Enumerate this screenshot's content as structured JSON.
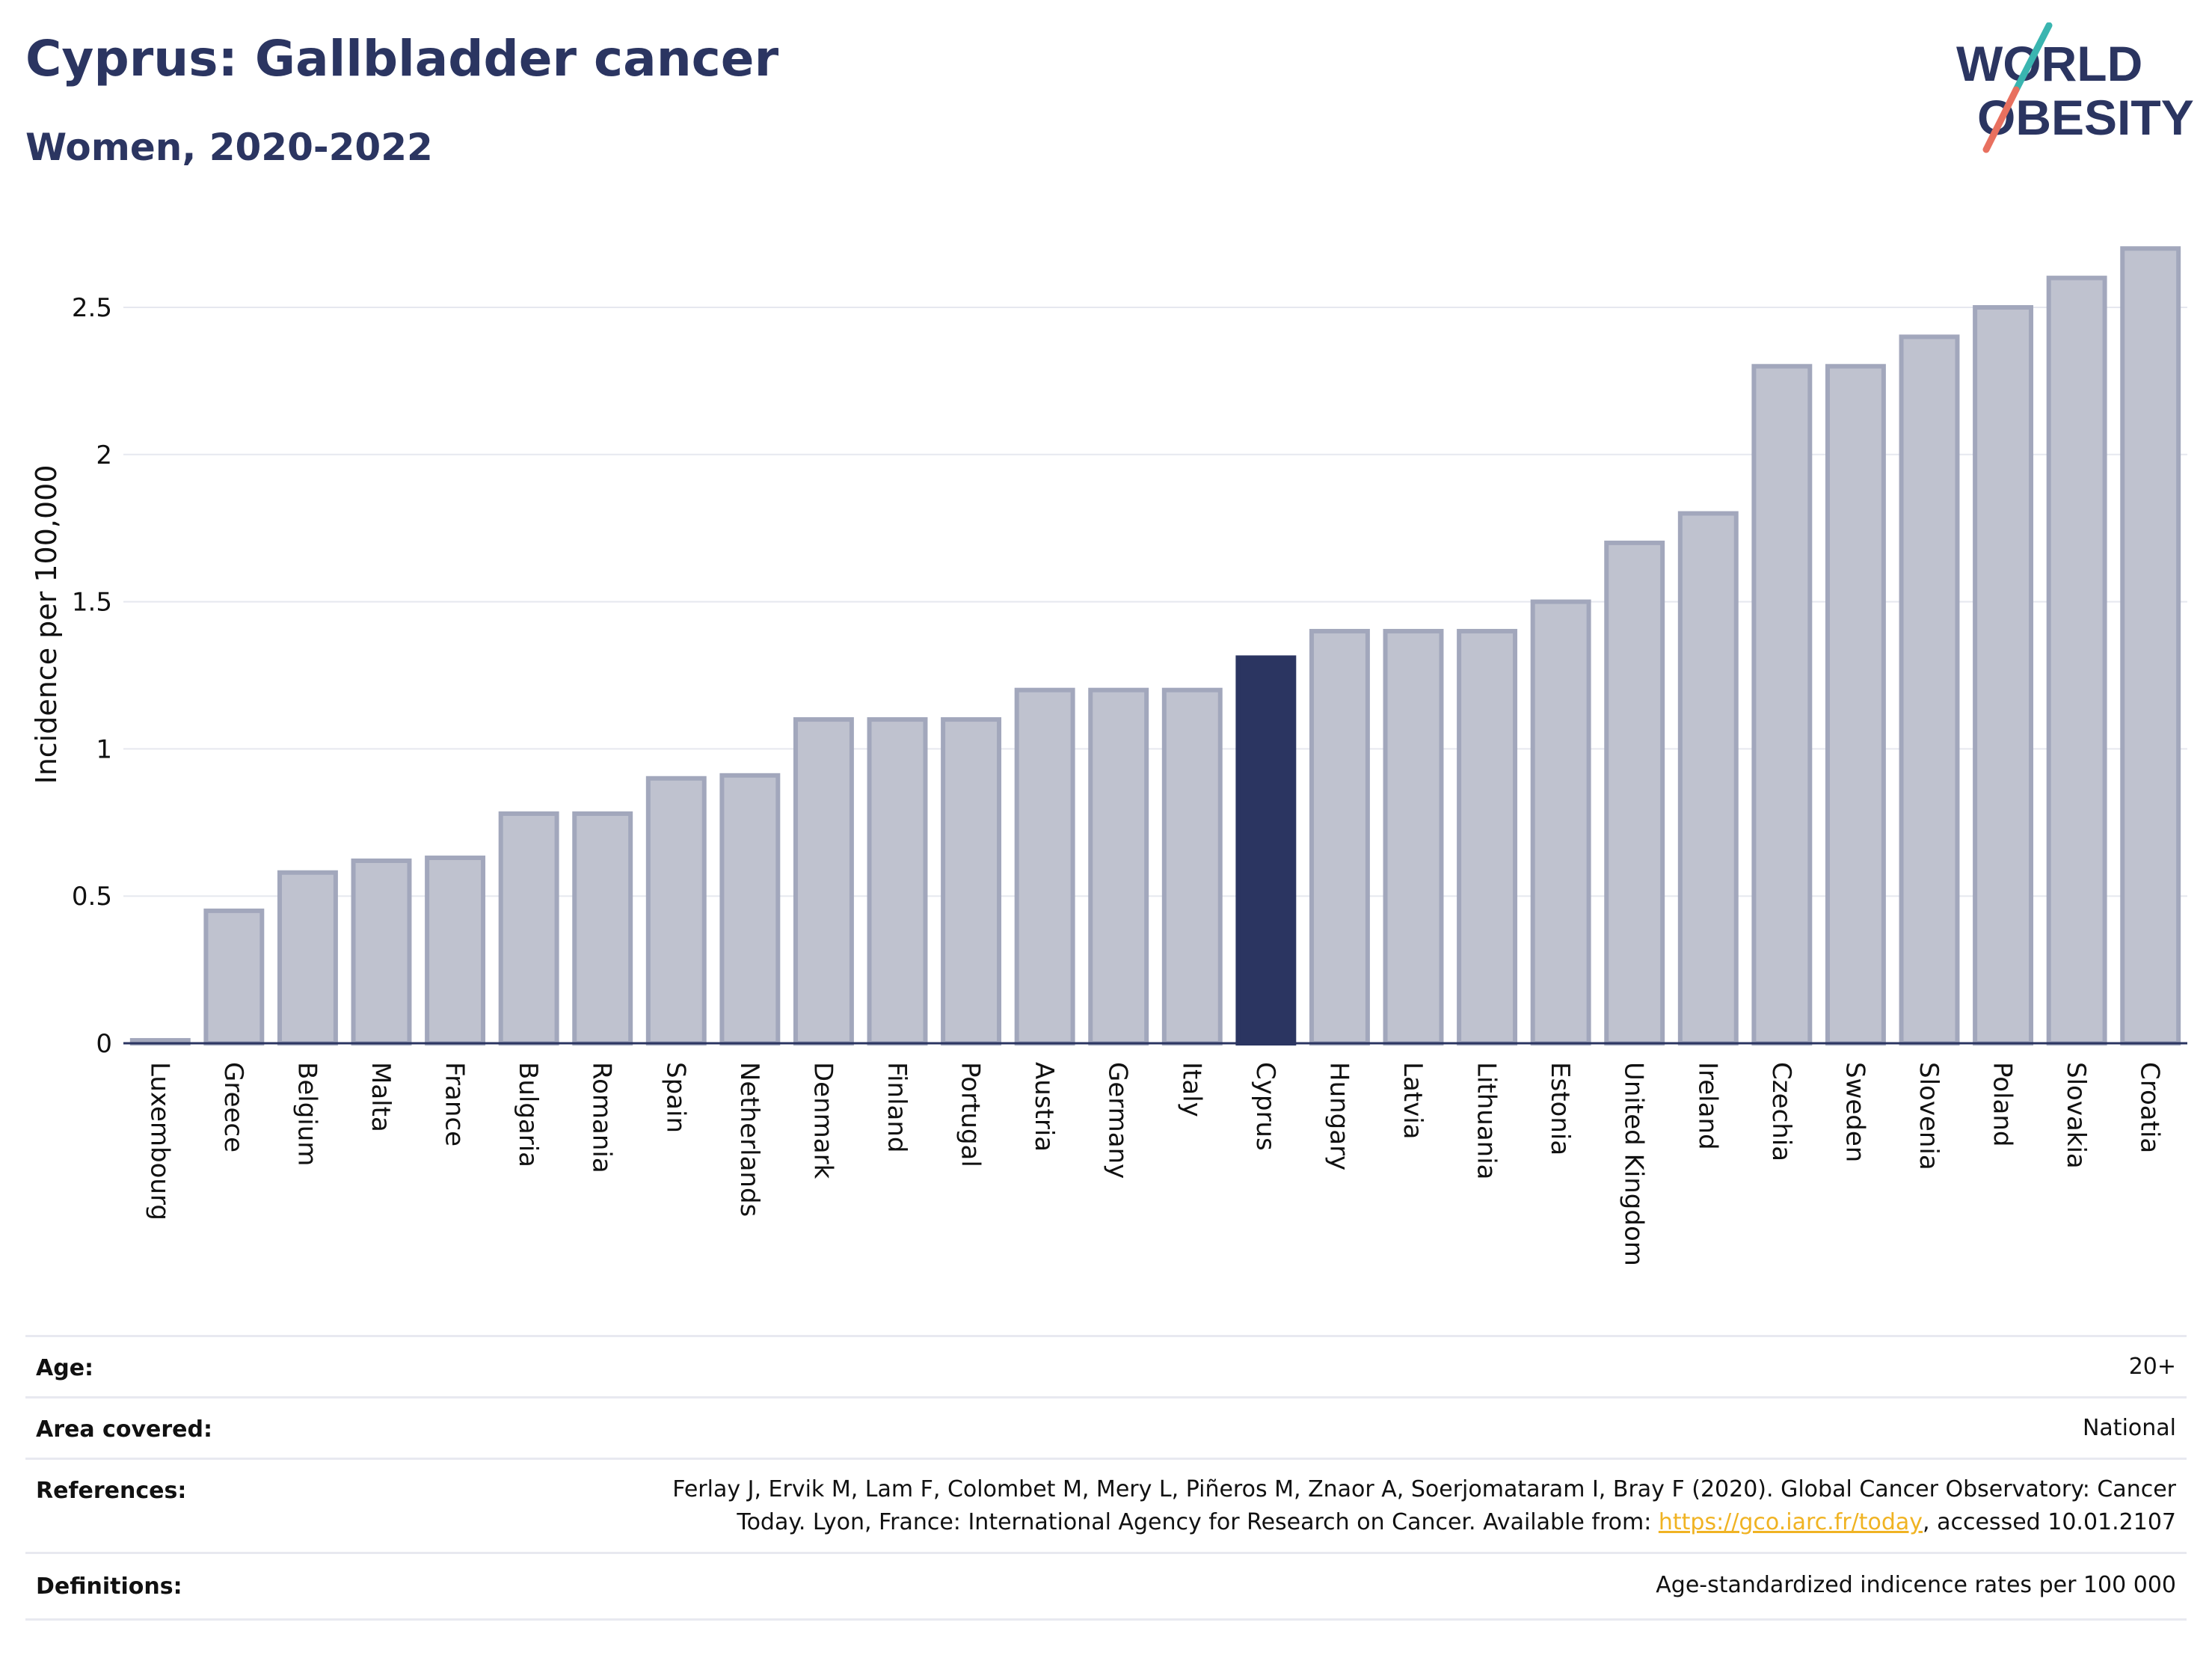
{
  "header": {
    "title": "Cyprus: Gallbladder cancer",
    "subtitle": "Women, 2020-2022"
  },
  "logo": {
    "line1": "WORLD",
    "line2": "OBESITY",
    "slash_colors": [
      "#3ab5b0",
      "#e8705f"
    ]
  },
  "chart_data": {
    "type": "bar",
    "categories": [
      "Luxembourg",
      "Greece",
      "Belgium",
      "Malta",
      "France",
      "Bulgaria",
      "Romania",
      "Spain",
      "Netherlands",
      "Denmark",
      "Finland",
      "Portugal",
      "Austria",
      "Germany",
      "Italy",
      "Cyprus",
      "Hungary",
      "Latvia",
      "Lithuania",
      "Estonia",
      "United Kingdom",
      "Ireland",
      "Czechia",
      "Sweden",
      "Slovenia",
      "Poland",
      "Slovakia",
      "Croatia"
    ],
    "values": [
      0.01,
      0.45,
      0.58,
      0.62,
      0.63,
      0.78,
      0.78,
      0.9,
      0.91,
      1.1,
      1.1,
      1.1,
      1.2,
      1.2,
      1.2,
      1.31,
      1.4,
      1.4,
      1.4,
      1.5,
      1.7,
      1.8,
      2.3,
      2.3,
      2.4,
      2.5,
      2.6,
      2.7
    ],
    "highlight": "Cyprus",
    "ylabel": "Incidence per 100,000",
    "yticks": [
      "0",
      "0.5",
      "1",
      "1.5",
      "2",
      "2.5"
    ],
    "ylim": [
      0,
      2.75
    ],
    "grid": true,
    "colors": {
      "bar_fill": "#bfc2cf",
      "bar_stroke": "#a2a7bc",
      "highlight": "#2b3561",
      "grid": "#e6e8ef",
      "axis": "#2b3561"
    }
  },
  "info_table": [
    {
      "label": "Age:",
      "value": "20+"
    },
    {
      "label": "Area covered:",
      "value": "National"
    },
    {
      "label": "References:",
      "value_line1": "Ferlay J, Ervik M, Lam F, Colombet M, Mery L, Piñeros M, Znaor A, Soerjomataram I, Bray F (2020). Global Cancer Observatory: Cancer",
      "value_line2_pre": "Today. Lyon, France: International Agency for Research on Cancer. Available from: ",
      "value_link": "https://gco.iarc.fr/today",
      "value_line2_post": ", accessed 10.01.2107"
    },
    {
      "label": "Definitions:",
      "value": "Age-standardized indicence rates per 100 000"
    }
  ]
}
